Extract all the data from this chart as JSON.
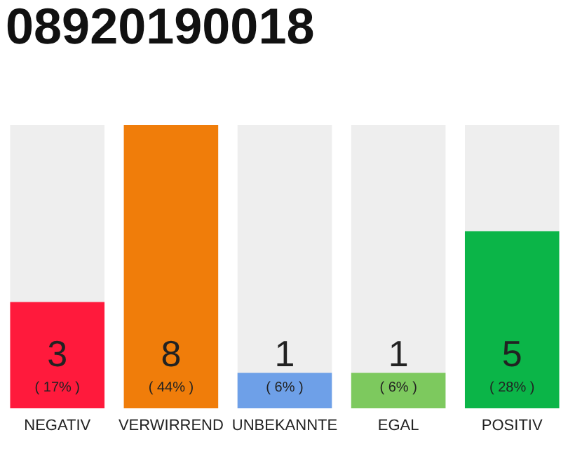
{
  "chart_data": {
    "type": "bar",
    "title": "08920190018",
    "categories": [
      "NEGATIV",
      "VERWIRREND",
      "UNBEKANNTE",
      "EGAL",
      "POSITIV"
    ],
    "values": [
      3,
      8,
      1,
      1,
      5
    ],
    "colors": [
      "#ff1a3c",
      "#f07d0a",
      "#6ea0e8",
      "#7dc95e",
      "#0bb548"
    ],
    "ylim": [
      0,
      8
    ],
    "tick_labels": "x",
    "data_labels": true,
    "annotations": [
      "( 17% )",
      "( 44% )",
      "( 6% )",
      "( 6% )",
      "( 28% )"
    ]
  }
}
